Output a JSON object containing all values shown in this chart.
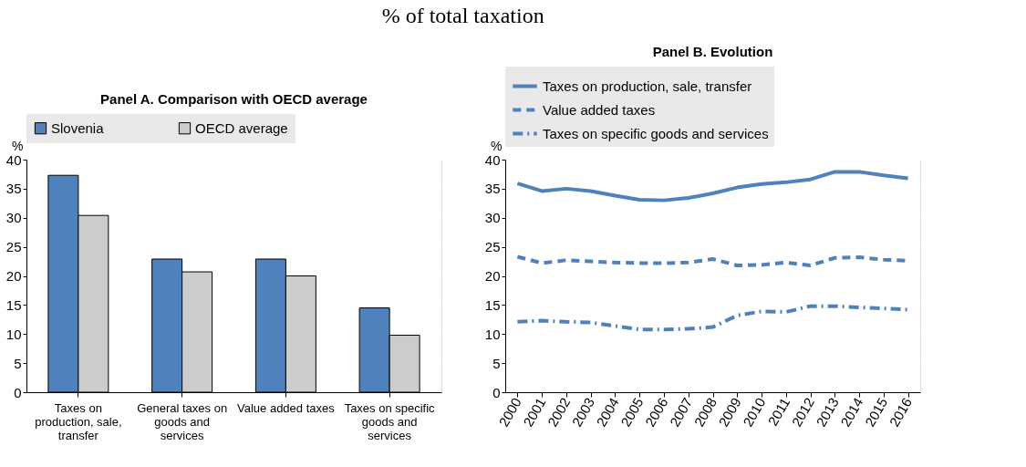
{
  "chart_data": [
    {
      "type": "bar",
      "title": "Panel A. Comparison with OECD average",
      "annotations": [
        "% of total taxation"
      ],
      "ylabel": "%",
      "categories": [
        "Taxes on production, sale, transfer",
        "General taxes on goods and services",
        "Value added taxes",
        "Taxes on specific goods and services"
      ],
      "series": [
        {
          "name": "Slovenia",
          "color": "#4f81bd",
          "values": [
            37.3,
            22.9,
            22.9,
            14.5
          ]
        },
        {
          "name": "OECD average",
          "color": "#cccccc",
          "values": [
            30.4,
            20.7,
            20.0,
            9.8
          ]
        }
      ],
      "ylim": [
        0,
        40
      ],
      "yticks": [
        0,
        5,
        10,
        15,
        20,
        25,
        30,
        35,
        40
      ],
      "grid": true,
      "legend": "top"
    },
    {
      "type": "line",
      "title": "Panel B. Evolution",
      "ylabel": "%",
      "categories": [
        "2000",
        "2001",
        "2002",
        "2003",
        "2004",
        "2005",
        "2006",
        "2007",
        "2008",
        "2009",
        "2010",
        "2011",
        "2012",
        "2013",
        "2014",
        "2015",
        "2016"
      ],
      "series": [
        {
          "name": "Taxes on production, sale, transfer",
          "color": "#4f81bd",
          "line_style": "solid",
          "values": [
            35.9,
            34.6,
            35.0,
            34.6,
            33.8,
            33.1,
            33.0,
            33.4,
            34.2,
            35.2,
            35.8,
            36.1,
            36.6,
            37.9,
            37.9,
            37.3,
            36.8
          ]
        },
        {
          "name": "Value added taxes",
          "color": "#4f81bd",
          "line_style": "dashed",
          "values": [
            23.3,
            22.2,
            22.7,
            22.5,
            22.3,
            22.2,
            22.2,
            22.3,
            22.9,
            21.8,
            21.9,
            22.3,
            21.8,
            23.1,
            23.2,
            22.8,
            22.6
          ]
        },
        {
          "name": "Taxes on specific goods and services",
          "color": "#4f81bd",
          "line_style": "dashdot",
          "values": [
            12.1,
            12.3,
            12.1,
            12.0,
            11.4,
            10.8,
            10.8,
            10.9,
            11.2,
            13.2,
            13.9,
            13.8,
            14.8,
            14.8,
            14.6,
            14.4,
            14.2
          ]
        }
      ],
      "ylim": [
        0,
        40
      ],
      "yticks": [
        0,
        5,
        10,
        15,
        20,
        25,
        30,
        35,
        40
      ],
      "grid": true,
      "legend": "top"
    }
  ]
}
